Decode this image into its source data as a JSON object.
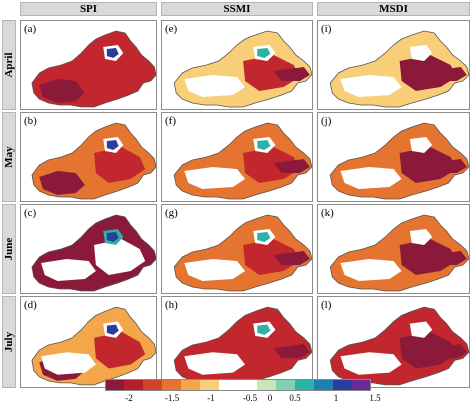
{
  "columns": [
    "SPI",
    "SSMI",
    "MSDI"
  ],
  "rows": [
    "April",
    "May",
    "June",
    "July"
  ],
  "panel_labels": [
    [
      "(a)",
      "(e)",
      "(i)"
    ],
    [
      "(b)",
      "(f)",
      "(j)"
    ],
    [
      "(c)",
      "(g)",
      "(k)"
    ],
    [
      "(d)",
      "(h)",
      "(l)"
    ]
  ],
  "legend": {
    "ticks": [
      "-2",
      "-1.5",
      "-1",
      "-0.5",
      "0",
      "0.5",
      "1",
      "1.5"
    ],
    "colors": [
      "#8b1a3a",
      "#b51e2f",
      "#d2412a",
      "#e4742f",
      "#f4a64a",
      "#f8cf78",
      "#ffffff",
      "#ffffff",
      "#c8e6b8",
      "#7fd0b5",
      "#2bb3a8",
      "#1e7fb2",
      "#283e9a",
      "#6a2a9a"
    ]
  },
  "colors": {
    "dark_red": "#8b1a3a",
    "red": "#c2272d",
    "orange": "#e4742f",
    "light_orange": "#f4a64a",
    "pale": "#f8cf78",
    "white": "#ffffff",
    "teal": "#2bb3a8",
    "blue": "#283e9a"
  }
}
